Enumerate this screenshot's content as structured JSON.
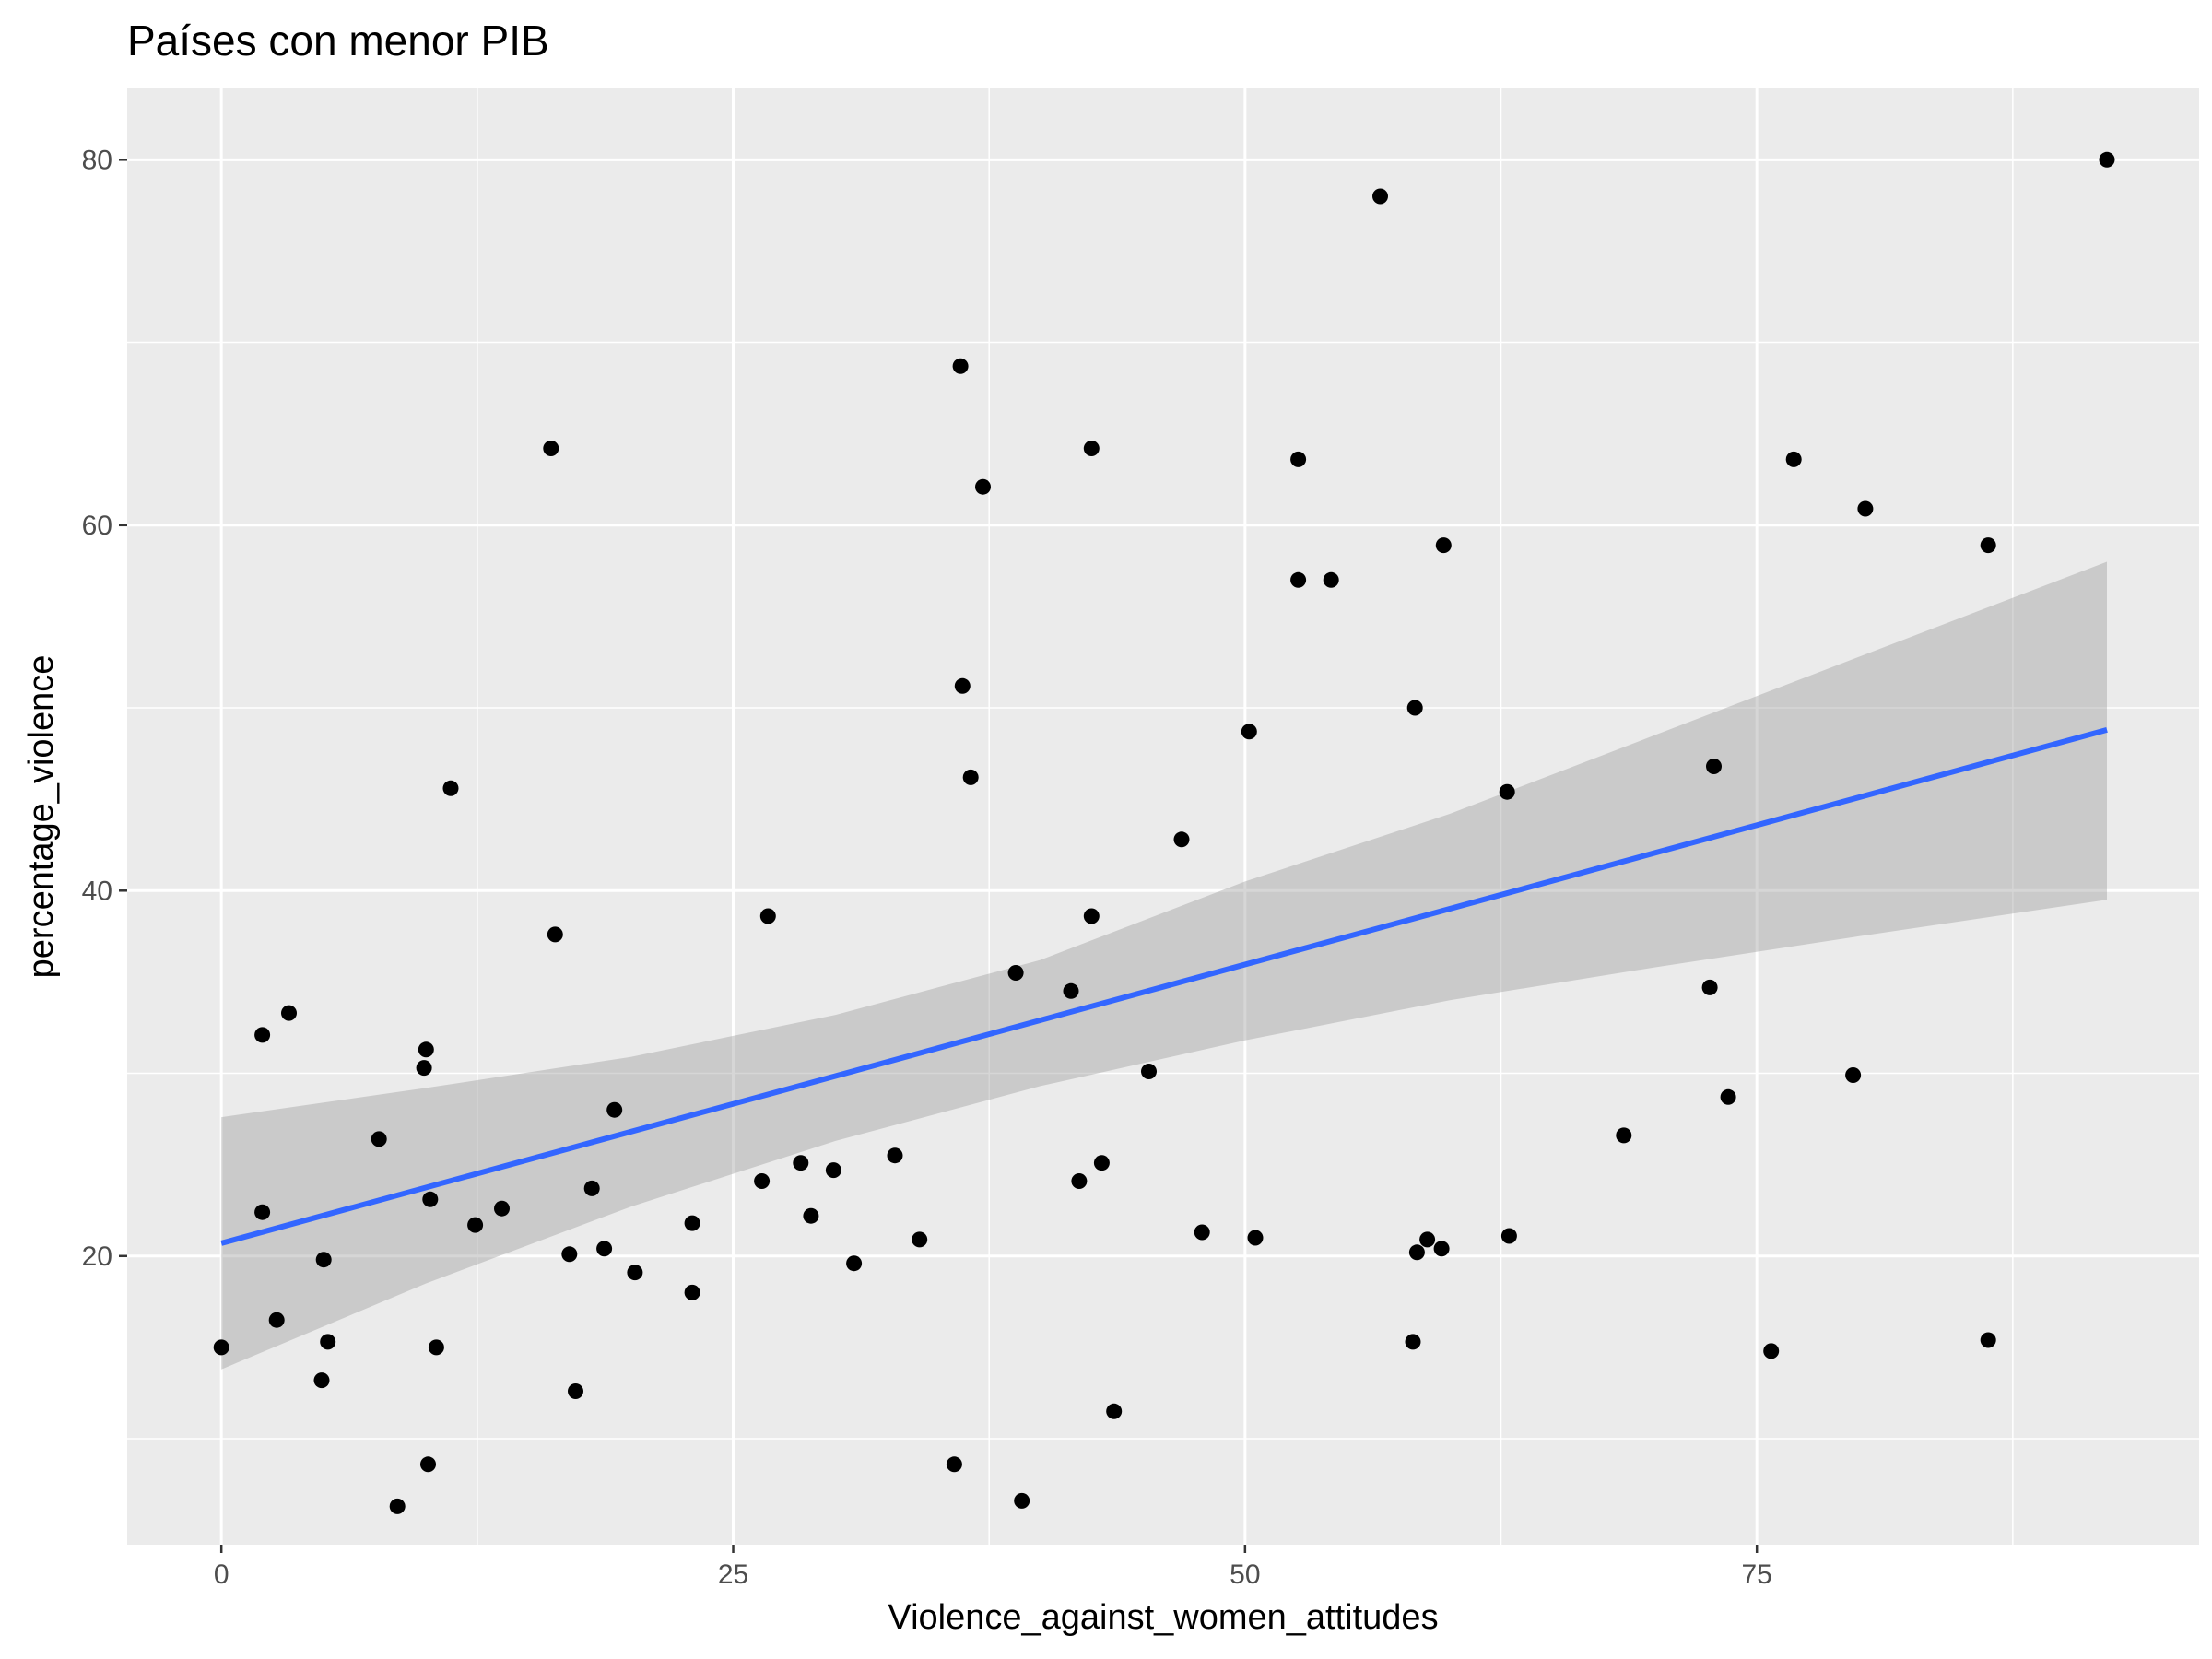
{
  "chart_data": {
    "type": "scatter",
    "title": "Países con menor PIB",
    "xlabel": "Violence_against_women_attitudes",
    "ylabel": "percentage_violence",
    "xlim": [
      -4.6,
      96.6
    ],
    "ylim": [
      4.2,
      83.9
    ],
    "x_ticks": [
      0,
      25,
      50,
      75
    ],
    "y_ticks": [
      20,
      40,
      60,
      80
    ],
    "x_tick_labels": [
      "0",
      "25",
      "50",
      "75"
    ],
    "y_tick_labels": [
      "20",
      "40",
      "60",
      "80"
    ],
    "grid": true,
    "legend": "none",
    "colors": {
      "panel": "#ebebeb",
      "grid": "#ffffff",
      "points": "#000000",
      "fit_line": "#3366ff",
      "band": "#999999"
    },
    "points": [
      [
        0,
        15
      ],
      [
        2,
        32.1
      ],
      [
        2,
        22.4
      ],
      [
        2.7,
        16.5
      ],
      [
        3.3,
        33.3
      ],
      [
        4.9,
        13.2
      ],
      [
        5,
        19.8
      ],
      [
        5.2,
        15.3
      ],
      [
        7.7,
        26.4
      ],
      [
        8.6,
        6.3
      ],
      [
        9.9,
        30.3
      ],
      [
        10,
        31.3
      ],
      [
        10.1,
        8.6
      ],
      [
        10.2,
        23.1
      ],
      [
        10.5,
        15
      ],
      [
        11.2,
        45.6
      ],
      [
        12.4,
        21.7
      ],
      [
        13.7,
        22.6
      ],
      [
        16.1,
        64.2
      ],
      [
        16.3,
        37.6
      ],
      [
        17,
        20.1
      ],
      [
        17.3,
        12.6
      ],
      [
        18.1,
        23.7
      ],
      [
        18.7,
        20.4
      ],
      [
        19.2,
        28
      ],
      [
        20.2,
        19.1
      ],
      [
        23,
        21.8
      ],
      [
        23,
        18
      ],
      [
        26.4,
        24.1
      ],
      [
        26.7,
        38.6
      ],
      [
        28.3,
        25.1
      ],
      [
        28.8,
        22.2
      ],
      [
        29.9,
        24.7
      ],
      [
        30.9,
        19.6
      ],
      [
        32.9,
        25.5
      ],
      [
        34.1,
        20.9
      ],
      [
        35.8,
        8.6
      ],
      [
        36.1,
        68.7
      ],
      [
        36.2,
        51.2
      ],
      [
        36.6,
        46.2
      ],
      [
        37.2,
        62.1
      ],
      [
        38.8,
        35.5
      ],
      [
        39.1,
        6.6
      ],
      [
        41.5,
        34.5
      ],
      [
        41.9,
        24.1
      ],
      [
        42.5,
        64.2
      ],
      [
        42.5,
        38.6
      ],
      [
        43,
        25.1
      ],
      [
        43.6,
        11.5
      ],
      [
        45.3,
        30.1
      ],
      [
        46.9,
        42.8
      ],
      [
        47.9,
        21.3
      ],
      [
        50.2,
        48.7
      ],
      [
        50.5,
        21
      ],
      [
        52.6,
        63.6
      ],
      [
        52.6,
        57
      ],
      [
        54.2,
        57
      ],
      [
        56.6,
        78
      ],
      [
        58.2,
        15.3
      ],
      [
        58.3,
        50
      ],
      [
        58.4,
        20.2
      ],
      [
        58.9,
        20.9
      ],
      [
        59.6,
        20.4
      ],
      [
        59.7,
        58.9
      ],
      [
        62.8,
        45.4
      ],
      [
        62.9,
        21.1
      ],
      [
        68.5,
        26.6
      ],
      [
        72.7,
        34.7
      ],
      [
        72.9,
        46.8
      ],
      [
        73.6,
        28.7
      ],
      [
        75.7,
        14.8
      ],
      [
        76.8,
        63.6
      ],
      [
        79.7,
        29.9
      ],
      [
        80.3,
        60.9
      ],
      [
        86.3,
        58.9
      ],
      [
        86.3,
        15.4
      ],
      [
        92.1,
        80
      ]
    ],
    "fit_line": {
      "x": [
        0,
        92.1
      ],
      "y": [
        20.7,
        48.8
      ]
    },
    "confidence_band": {
      "x": [
        0,
        10,
        20,
        30,
        40,
        50,
        60,
        70,
        80,
        92.1
      ],
      "lower": [
        13.8,
        18.5,
        22.7,
        26.3,
        29.3,
        31.8,
        34,
        35.8,
        37.5,
        39.5
      ],
      "upper": [
        27.6,
        29.2,
        30.9,
        33.2,
        36.2,
        40.5,
        44.2,
        48.5,
        52.8,
        58
      ]
    }
  }
}
